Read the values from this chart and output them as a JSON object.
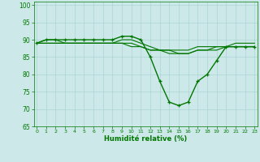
{
  "xlabel": "Humidité relative (%)",
  "bg_color": "#cce8e8",
  "grid_color": "#aad4d4",
  "line_color": "#007700",
  "ylim": [
    65,
    101
  ],
  "yticks": [
    65,
    70,
    75,
    80,
    85,
    90,
    95,
    100
  ],
  "hours": [
    0,
    1,
    2,
    3,
    4,
    5,
    6,
    7,
    8,
    9,
    10,
    11,
    12,
    13,
    14,
    15,
    16,
    17,
    18,
    19,
    20,
    21,
    22,
    23
  ],
  "series": [
    {
      "values": [
        89,
        90,
        90,
        90,
        90,
        90,
        90,
        90,
        90,
        91,
        91,
        90,
        85,
        78,
        72,
        71,
        72,
        78,
        80,
        84,
        88,
        88,
        88,
        88
      ],
      "marker": true,
      "lw": 1.0
    },
    {
      "values": [
        89,
        90,
        90,
        89,
        89,
        89,
        89,
        89,
        89,
        90,
        90,
        89,
        88,
        87,
        87,
        87,
        87,
        88,
        88,
        88,
        88,
        89,
        89,
        89
      ],
      "marker": false,
      "lw": 0.8
    },
    {
      "values": [
        89,
        89,
        89,
        89,
        89,
        89,
        89,
        89,
        89,
        89,
        89,
        88,
        87,
        87,
        87,
        86,
        86,
        87,
        87,
        88,
        88,
        88,
        88,
        88
      ],
      "marker": false,
      "lw": 0.8
    },
    {
      "values": [
        89,
        89,
        89,
        89,
        89,
        89,
        89,
        89,
        89,
        89,
        88,
        88,
        87,
        87,
        86,
        86,
        86,
        87,
        87,
        87,
        88,
        88,
        88,
        88
      ],
      "marker": false,
      "lw": 0.8
    }
  ]
}
